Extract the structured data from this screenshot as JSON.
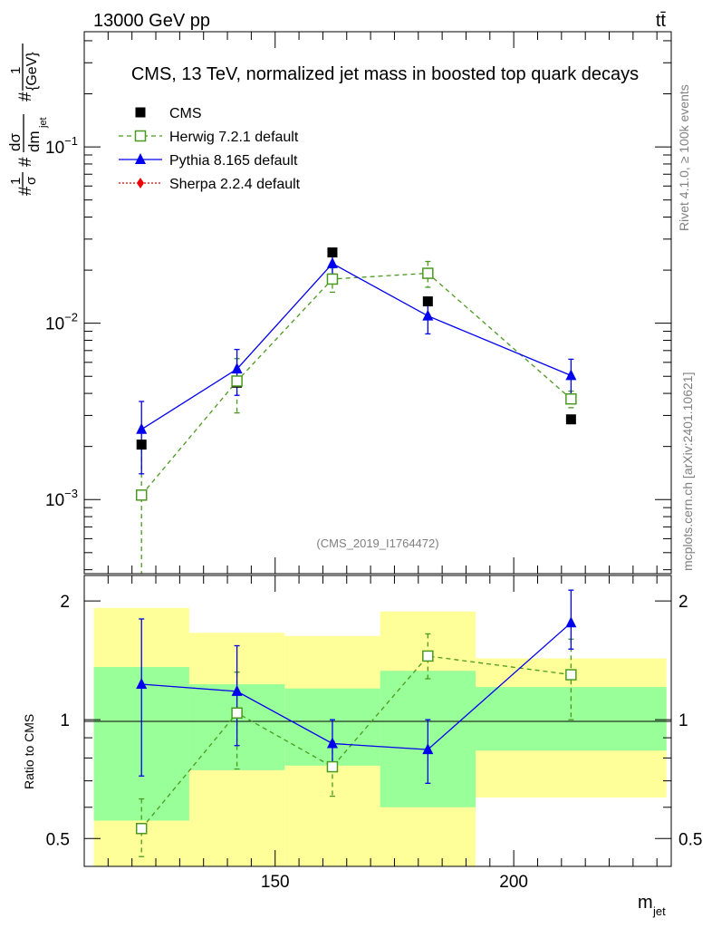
{
  "header": {
    "energy_label": "13000 GeV pp",
    "process_label": "tt̄"
  },
  "side_labels": {
    "rivet": "Rivet 4.1.0, ≥ 100k events",
    "mcplots": "mcplots.cern.ch [arXiv:2401.10621]"
  },
  "chart_data": [
    {
      "type": "line",
      "title": "CMS, 13 TeV, normalized jet mass in boosted top quark decays",
      "watermark": "(CMS_2019_I1764472)",
      "ylabel_parts": {
        "hash": "#",
        "one": "1",
        "sigma": "σ",
        "dsigma": "dσ",
        "dm": "dm",
        "jet": "jet",
        "gev": "{GeV}"
      },
      "yscale": "log",
      "xlim": [
        110,
        233
      ],
      "ylim": [
        0.00038,
        0.45
      ],
      "y_ticks": [
        {
          "value": 0.001,
          "base": "10",
          "exp": "−3"
        },
        {
          "value": 0.01,
          "base": "10",
          "exp": "−2"
        },
        {
          "value": 0.1,
          "base": "10",
          "exp": "−1"
        }
      ],
      "legend_position": "top-left",
      "series": [
        {
          "name": "CMS",
          "color": "#000000",
          "marker": "square-filled",
          "x": [
            122,
            142,
            162,
            182,
            212
          ],
          "y": [
            0.00205,
            0.0046,
            0.0252,
            0.0133,
            0.00285
          ],
          "yerr_lo": [
            0,
            0,
            0,
            0,
            0
          ],
          "yerr_hi": [
            0,
            0,
            0,
            0,
            0
          ]
        },
        {
          "name": "Herwig 7.2.1 default",
          "color": "#4a9a1f",
          "marker": "square-open",
          "dashed": true,
          "x": [
            122,
            142,
            162,
            182,
            212
          ],
          "y": [
            0.00106,
            0.0047,
            0.0178,
            0.0192,
            0.00372
          ],
          "yerr_lo": [
            0.00106,
            0.0016,
            0.0028,
            0.0032,
            0.0004
          ],
          "yerr_hi": [
            0.0011,
            0.0016,
            0.0028,
            0.0032,
            0.0004
          ]
        },
        {
          "name": "Pythia 8.165 default",
          "color": "#0000ee",
          "marker": "triangle-filled",
          "x": [
            122,
            142,
            162,
            182,
            212
          ],
          "y": [
            0.0025,
            0.0055,
            0.0218,
            0.011,
            0.00505
          ],
          "yerr_lo": [
            0.0011,
            0.0016,
            0.0028,
            0.0023,
            0.0012
          ],
          "yerr_hi": [
            0.0011,
            0.0016,
            0.0028,
            0.0023,
            0.0012
          ]
        },
        {
          "name": "Sherpa 2.2.4 default",
          "color": "#ee0000",
          "marker": "diamond-filled",
          "dotted": true,
          "x": [],
          "y": [],
          "yerr_lo": [],
          "yerr_hi": []
        }
      ]
    },
    {
      "type": "line",
      "title": "",
      "xlabel": "m",
      "xlabel_sub": "jet",
      "ylabel": "Ratio to CMS",
      "yscale": "log",
      "xlim": [
        110,
        233
      ],
      "ylim": [
        0.425,
        2.32
      ],
      "x_ticks": [
        150,
        200
      ],
      "y_ticks": [
        0.5,
        1,
        2
      ],
      "y_tick_labels": [
        "0.5",
        "1",
        "2"
      ],
      "bands": {
        "edges": [
          112,
          132,
          152,
          172,
          192,
          232
        ],
        "yellow_lo": [
          0.35,
          0.35,
          0.41,
          0.35,
          0.635
        ],
        "yellow_hi": [
          1.92,
          1.66,
          1.63,
          1.88,
          1.43
        ],
        "green_lo": [
          0.555,
          0.745,
          0.765,
          0.6,
          0.835
        ],
        "green_hi": [
          1.36,
          1.23,
          1.2,
          1.33,
          1.21
        ],
        "yellow_color": "#ffff99",
        "green_color": "#99ff99"
      },
      "series": [
        {
          "name": "Herwig 7.2.1 default",
          "color": "#4a9a1f",
          "marker": "square-open",
          "dashed": true,
          "x": [
            122,
            142,
            162,
            182,
            212
          ],
          "y": [
            0.53,
            1.04,
            0.76,
            1.45,
            1.3
          ],
          "yerr_lo": [
            0.08,
            0.29,
            0.12,
            0.18,
            0.3
          ],
          "yerr_hi": [
            0.1,
            0.28,
            0.12,
            0.2,
            0.3
          ]
        },
        {
          "name": "Pythia 8.165 default",
          "color": "#0000ee",
          "marker": "triangle-filled",
          "x": [
            122,
            142,
            162,
            182,
            212
          ],
          "y": [
            1.23,
            1.18,
            0.87,
            0.84,
            1.76
          ],
          "yerr_lo": [
            0.51,
            0.32,
            0.13,
            0.15,
            0.25
          ],
          "yerr_hi": [
            0.57,
            0.36,
            0.13,
            0.16,
            0.37
          ]
        }
      ]
    }
  ]
}
